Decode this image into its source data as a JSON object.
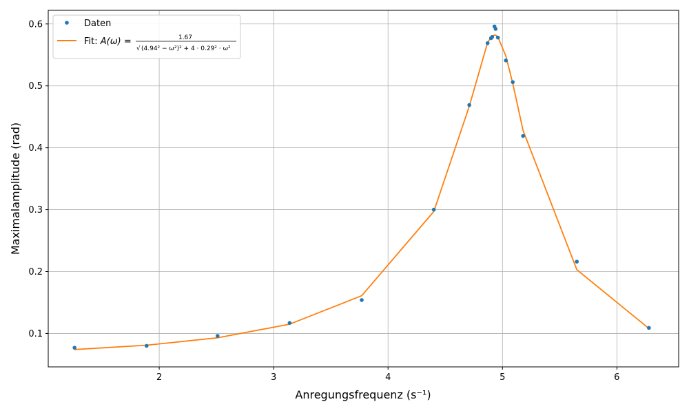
{
  "chart_data": {
    "type": "scatter",
    "xlabel": "Anregungsfrequenz (s⁻¹)",
    "ylabel": "Maximalamplitude (rad)",
    "xlim": [
      1.03,
      6.54
    ],
    "ylim": [
      0.046,
      0.622
    ],
    "xticks": [
      2,
      3,
      4,
      5,
      6
    ],
    "yticks": [
      0.1,
      0.2,
      0.3,
      0.4,
      0.5,
      0.6
    ],
    "grid": true,
    "legend_position": "top-left",
    "series": [
      {
        "name": "Daten",
        "kind": "points",
        "color": "#1f77b4",
        "x": [
          1.26,
          1.89,
          2.51,
          3.14,
          3.77,
          4.4,
          4.71,
          4.87,
          4.9,
          4.91,
          4.93,
          4.94,
          4.96,
          5.03,
          5.09,
          5.18,
          5.65,
          6.28
        ],
        "y": [
          0.077,
          0.08,
          0.096,
          0.117,
          0.154,
          0.3,
          0.469,
          0.569,
          0.577,
          0.579,
          0.596,
          0.592,
          0.578,
          0.541,
          0.506,
          0.419,
          0.216,
          0.109
        ]
      },
      {
        "name": "Fit: A(ω) = 1.67 / √((4.94² − ω²)² + 4·0.29²·ω²)",
        "kind": "line",
        "color": "#ff7f0e",
        "x": [
          1.26,
          1.89,
          2.51,
          3.14,
          3.77,
          4.4,
          4.71,
          4.87,
          4.9,
          4.91,
          4.93,
          4.94,
          4.96,
          5.03,
          5.09,
          5.18,
          5.65,
          6.28
        ],
        "y": [
          0.074,
          0.081,
          0.093,
          0.115,
          0.161,
          0.297,
          0.467,
          0.57,
          0.578,
          0.58,
          0.582,
          0.582,
          0.579,
          0.548,
          0.504,
          0.428,
          0.203,
          0.108
        ]
      }
    ],
    "legend": {
      "data_label": "Daten",
      "fit_prefix": "Fit: ",
      "fit_func": "A(ω) =",
      "fit_numerator": "1.67",
      "fit_denominator": "(4.94² − ω²)² + 4 · 0.29² · ω²"
    }
  }
}
